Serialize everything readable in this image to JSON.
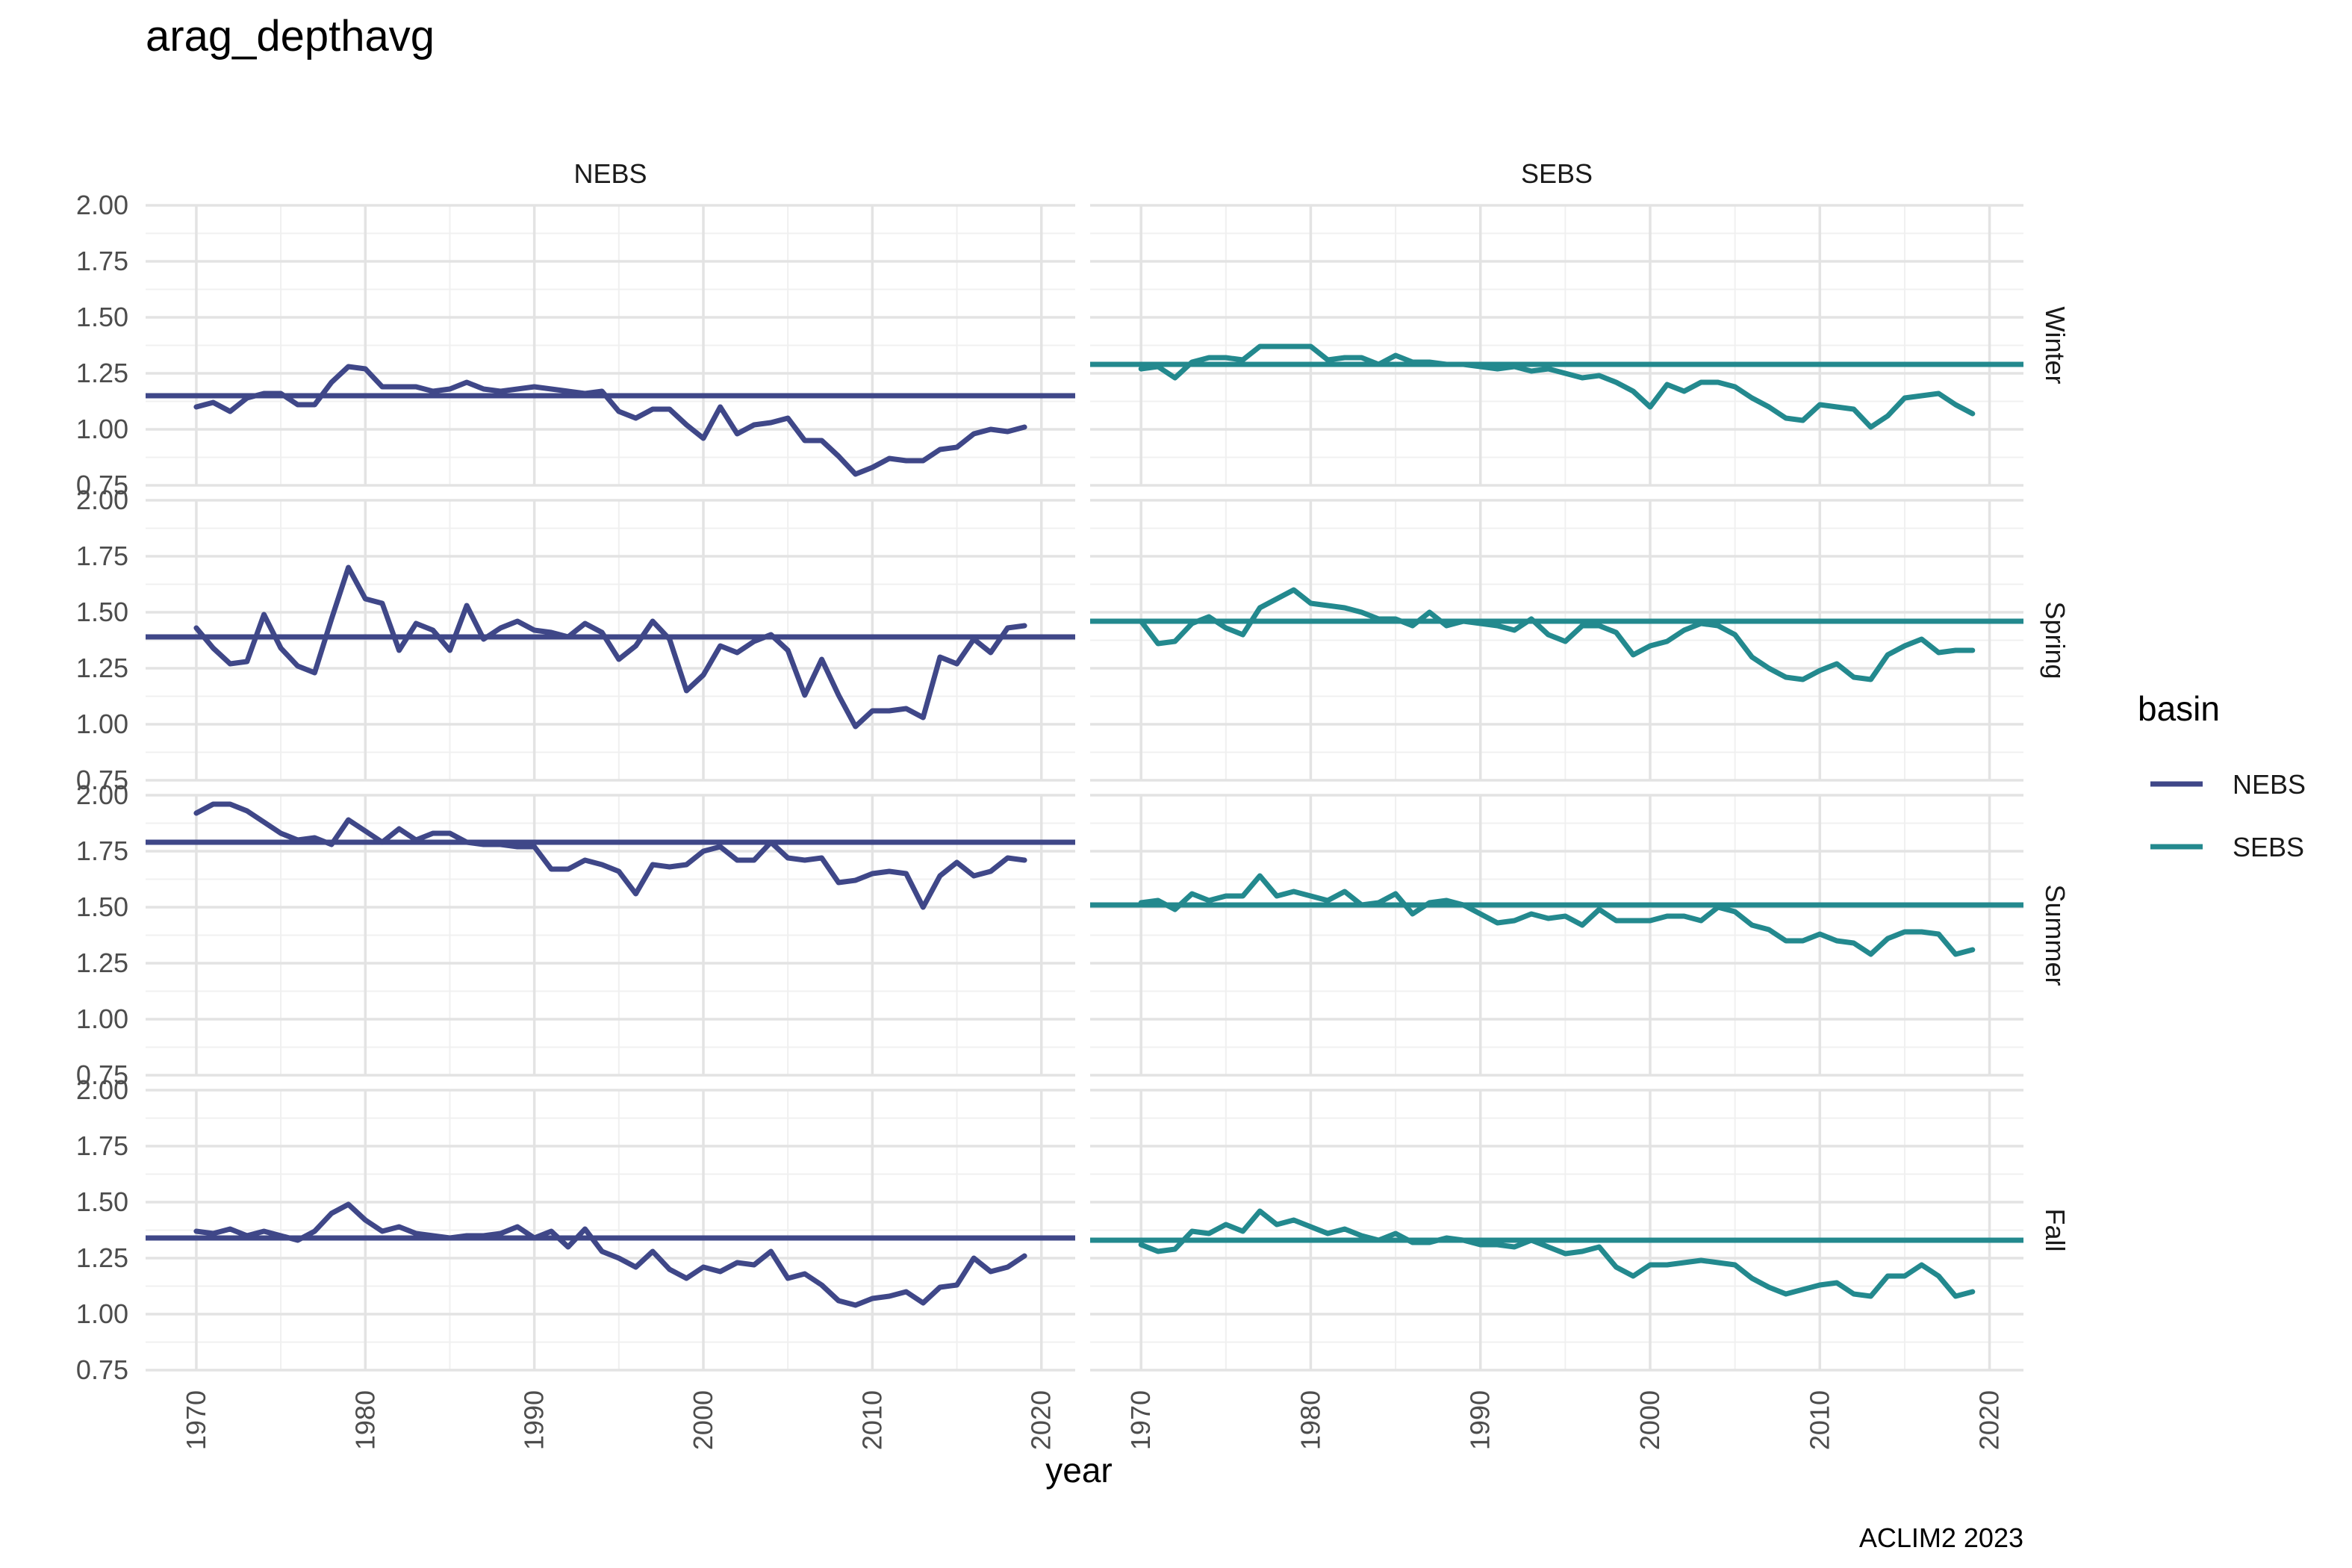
{
  "chart_data": {
    "type": "line",
    "title": "arag_depthavg",
    "xlabel": "year",
    "ylabel": "",
    "caption": "ACLIM2 2023",
    "xlim": [
      1967,
      2022
    ],
    "ylim": [
      0.75,
      2.0
    ],
    "x_ticks": [
      1970,
      1980,
      1990,
      2000,
      2010,
      2020
    ],
    "y_ticks": [
      0.75,
      1.0,
      1.25,
      1.5,
      1.75,
      2.0
    ],
    "y_tick_labels": [
      "0.75",
      "1.00",
      "1.25",
      "1.50",
      "1.75",
      "2.00"
    ],
    "facet_columns": [
      "NEBS",
      "SEBS"
    ],
    "facet_rows": [
      "Winter",
      "Spring",
      "Summer",
      "Fall"
    ],
    "legend": {
      "title": "basin",
      "position": "right",
      "entries": [
        {
          "name": "NEBS",
          "color": "#3f4788"
        },
        {
          "name": "SEBS",
          "color": "#23898e"
        }
      ]
    },
    "grid": true,
    "x": [
      1970,
      1971,
      1972,
      1973,
      1974,
      1975,
      1976,
      1977,
      1978,
      1979,
      1980,
      1981,
      1982,
      1983,
      1984,
      1985,
      1986,
      1987,
      1988,
      1989,
      1990,
      1991,
      1992,
      1993,
      1994,
      1995,
      1996,
      1997,
      1998,
      1999,
      2000,
      2001,
      2002,
      2003,
      2004,
      2005,
      2006,
      2007,
      2008,
      2009,
      2010,
      2011,
      2012,
      2013,
      2014,
      2015,
      2016,
      2017,
      2018,
      2019
    ],
    "panels": [
      {
        "basin": "NEBS",
        "season": "Winter",
        "mean": 1.15,
        "values": [
          1.1,
          1.12,
          1.08,
          1.14,
          1.16,
          1.16,
          1.11,
          1.11,
          1.21,
          1.28,
          1.27,
          1.19,
          1.19,
          1.19,
          1.17,
          1.18,
          1.21,
          1.18,
          1.17,
          1.18,
          1.19,
          1.18,
          1.17,
          1.16,
          1.17,
          1.08,
          1.05,
          1.09,
          1.09,
          1.02,
          0.96,
          1.1,
          0.98,
          1.02,
          1.03,
          1.05,
          0.95,
          0.95,
          0.88,
          0.8,
          0.83,
          0.87,
          0.86,
          0.86,
          0.91,
          0.92,
          0.98,
          1.0,
          0.99,
          1.01
        ]
      },
      {
        "basin": "NEBS",
        "season": "Spring",
        "mean": 1.39,
        "values": [
          1.43,
          1.34,
          1.27,
          1.28,
          1.49,
          1.34,
          1.26,
          1.23,
          1.47,
          1.7,
          1.56,
          1.54,
          1.33,
          1.45,
          1.42,
          1.33,
          1.53,
          1.38,
          1.43,
          1.46,
          1.42,
          1.41,
          1.39,
          1.45,
          1.41,
          1.29,
          1.35,
          1.46,
          1.38,
          1.15,
          1.22,
          1.35,
          1.32,
          1.37,
          1.4,
          1.33,
          1.13,
          1.29,
          1.13,
          0.99,
          1.06,
          1.06,
          1.07,
          1.03,
          1.3,
          1.27,
          1.38,
          1.32,
          1.43,
          1.44
        ]
      },
      {
        "basin": "NEBS",
        "season": "Summer",
        "mean": 1.79,
        "values": [
          1.92,
          1.96,
          1.96,
          1.93,
          1.88,
          1.83,
          1.8,
          1.81,
          1.78,
          1.89,
          1.84,
          1.79,
          1.85,
          1.8,
          1.83,
          1.83,
          1.79,
          1.78,
          1.78,
          1.77,
          1.77,
          1.67,
          1.67,
          1.71,
          1.69,
          1.66,
          1.56,
          1.69,
          1.68,
          1.69,
          1.75,
          1.77,
          1.71,
          1.71,
          1.79,
          1.72,
          1.71,
          1.72,
          1.61,
          1.62,
          1.65,
          1.66,
          1.65,
          1.5,
          1.64,
          1.7,
          1.64,
          1.66,
          1.72,
          1.71
        ]
      },
      {
        "basin": "NEBS",
        "season": "Fall",
        "mean": 1.34,
        "values": [
          1.37,
          1.36,
          1.38,
          1.35,
          1.37,
          1.35,
          1.33,
          1.37,
          1.45,
          1.49,
          1.42,
          1.37,
          1.39,
          1.36,
          1.35,
          1.34,
          1.35,
          1.35,
          1.36,
          1.39,
          1.34,
          1.37,
          1.3,
          1.38,
          1.28,
          1.25,
          1.21,
          1.28,
          1.2,
          1.16,
          1.21,
          1.19,
          1.23,
          1.22,
          1.28,
          1.16,
          1.18,
          1.13,
          1.06,
          1.04,
          1.07,
          1.08,
          1.1,
          1.05,
          1.12,
          1.13,
          1.25,
          1.19,
          1.21,
          1.26
        ]
      },
      {
        "basin": "SEBS",
        "season": "Winter",
        "mean": 1.29,
        "values": [
          1.27,
          1.28,
          1.23,
          1.3,
          1.32,
          1.32,
          1.31,
          1.37,
          1.37,
          1.37,
          1.37,
          1.31,
          1.32,
          1.32,
          1.29,
          1.33,
          1.3,
          1.3,
          1.29,
          1.29,
          1.28,
          1.27,
          1.28,
          1.26,
          1.27,
          1.25,
          1.23,
          1.24,
          1.21,
          1.17,
          1.1,
          1.2,
          1.17,
          1.21,
          1.21,
          1.19,
          1.14,
          1.1,
          1.05,
          1.04,
          1.11,
          1.1,
          1.09,
          1.01,
          1.06,
          1.14,
          1.15,
          1.16,
          1.11,
          1.07
        ]
      },
      {
        "basin": "SEBS",
        "season": "Spring",
        "mean": 1.46,
        "values": [
          1.46,
          1.36,
          1.37,
          1.45,
          1.48,
          1.43,
          1.4,
          1.52,
          1.56,
          1.6,
          1.54,
          1.53,
          1.52,
          1.5,
          1.47,
          1.47,
          1.44,
          1.5,
          1.44,
          1.46,
          1.45,
          1.44,
          1.42,
          1.47,
          1.4,
          1.37,
          1.44,
          1.44,
          1.41,
          1.31,
          1.35,
          1.37,
          1.42,
          1.45,
          1.44,
          1.4,
          1.3,
          1.25,
          1.21,
          1.2,
          1.24,
          1.27,
          1.21,
          1.2,
          1.31,
          1.35,
          1.38,
          1.32,
          1.33,
          1.33
        ]
      },
      {
        "basin": "SEBS",
        "season": "Summer",
        "mean": 1.51,
        "values": [
          1.52,
          1.53,
          1.49,
          1.56,
          1.53,
          1.55,
          1.55,
          1.64,
          1.55,
          1.57,
          1.55,
          1.53,
          1.57,
          1.51,
          1.52,
          1.56,
          1.47,
          1.52,
          1.53,
          1.51,
          1.47,
          1.43,
          1.44,
          1.47,
          1.45,
          1.46,
          1.42,
          1.49,
          1.44,
          1.44,
          1.44,
          1.46,
          1.46,
          1.44,
          1.5,
          1.48,
          1.42,
          1.4,
          1.35,
          1.35,
          1.38,
          1.35,
          1.34,
          1.29,
          1.36,
          1.39,
          1.39,
          1.38,
          1.29,
          1.31
        ]
      },
      {
        "basin": "SEBS",
        "season": "Fall",
        "mean": 1.33,
        "values": [
          1.31,
          1.28,
          1.29,
          1.37,
          1.36,
          1.4,
          1.37,
          1.46,
          1.4,
          1.42,
          1.39,
          1.36,
          1.38,
          1.35,
          1.33,
          1.36,
          1.32,
          1.32,
          1.34,
          1.33,
          1.31,
          1.31,
          1.3,
          1.33,
          1.3,
          1.27,
          1.28,
          1.3,
          1.21,
          1.17,
          1.22,
          1.22,
          1.23,
          1.24,
          1.23,
          1.22,
          1.16,
          1.12,
          1.09,
          1.11,
          1.13,
          1.14,
          1.09,
          1.08,
          1.17,
          1.17,
          1.22,
          1.17,
          1.08,
          1.1
        ]
      }
    ]
  }
}
